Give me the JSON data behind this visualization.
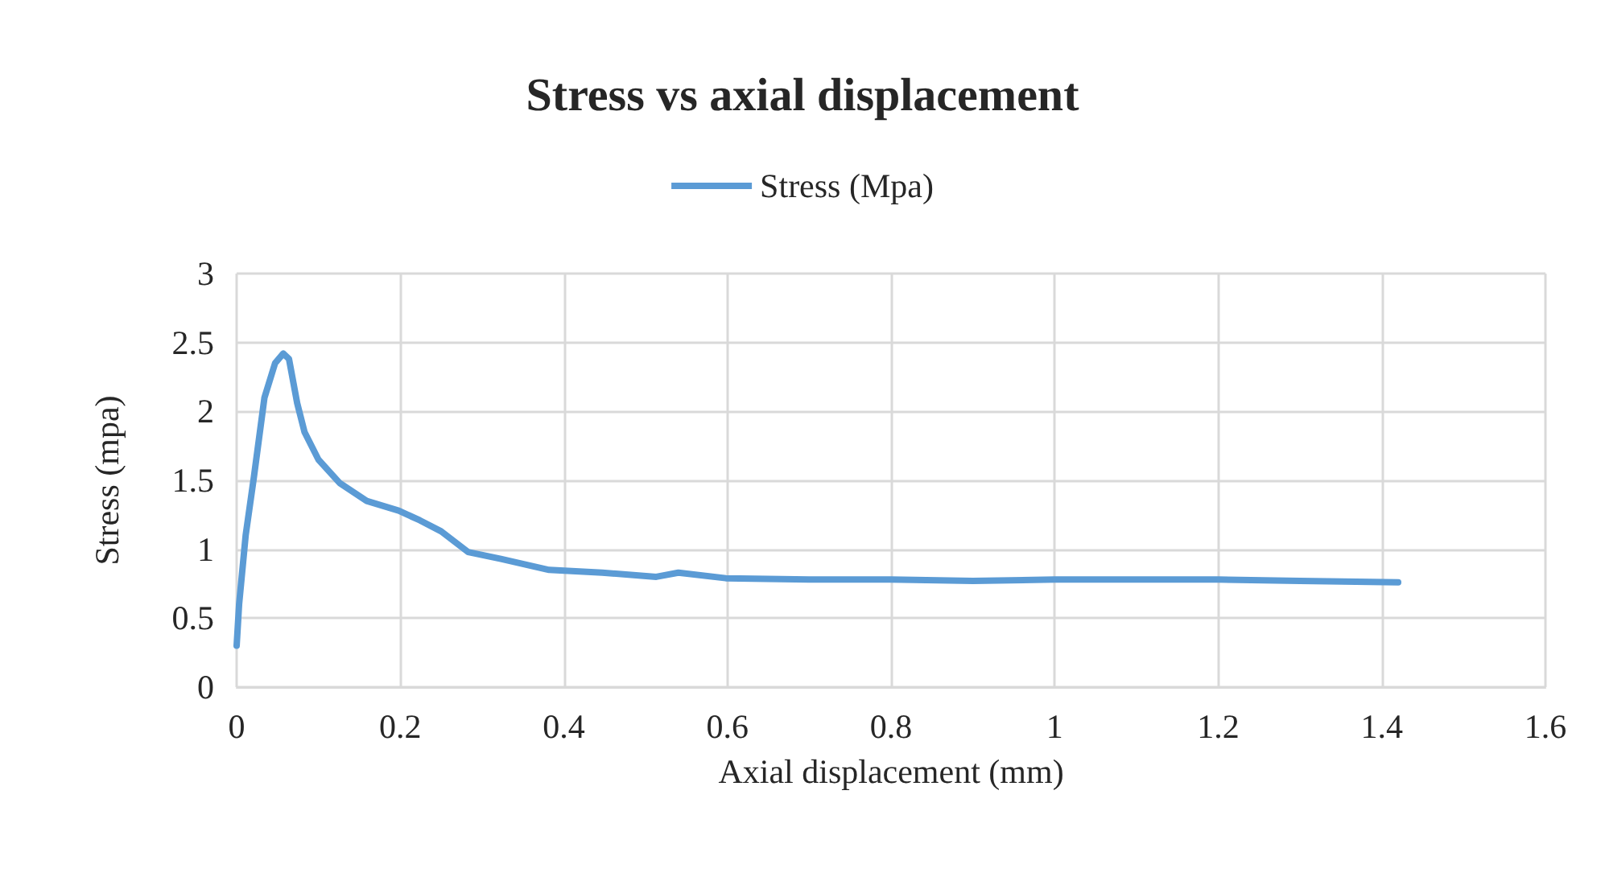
{
  "chart_data": {
    "type": "line",
    "title": "Stress vs axial displacement",
    "xlabel": "Axial displacement (mm)",
    "ylabel": "Stress (mpa)",
    "series": [
      {
        "name": "Stress (Mpa)",
        "color": "#5b9bd5",
        "x": [
          0,
          0.003,
          0.011,
          0.021,
          0.034,
          0.047,
          0.057,
          0.064,
          0.074,
          0.083,
          0.1,
          0.126,
          0.159,
          0.198,
          0.224,
          0.25,
          0.283,
          0.323,
          0.382,
          0.447,
          0.513,
          0.54,
          0.598,
          0.7,
          0.8,
          0.9,
          1.0,
          1.1,
          1.2,
          1.3,
          1.42
        ],
        "values": [
          0.3,
          0.6,
          1.1,
          1.52,
          2.1,
          2.35,
          2.42,
          2.38,
          2.06,
          1.85,
          1.65,
          1.48,
          1.35,
          1.28,
          1.21,
          1.13,
          0.98,
          0.93,
          0.85,
          0.83,
          0.8,
          0.83,
          0.79,
          0.78,
          0.78,
          0.77,
          0.78,
          0.78,
          0.78,
          0.77,
          0.76
        ]
      }
    ],
    "xlim": [
      0,
      1.6
    ],
    "xticks": [
      0,
      0.2,
      0.4,
      0.6,
      0.8,
      1,
      1.2,
      1.4,
      1.6
    ],
    "ylim": [
      0,
      3
    ],
    "yticks": [
      0,
      0.5,
      1,
      1.5,
      2,
      2.5,
      3
    ],
    "grid": true,
    "legend": "top",
    "marker": "none",
    "line_style": "solid"
  }
}
